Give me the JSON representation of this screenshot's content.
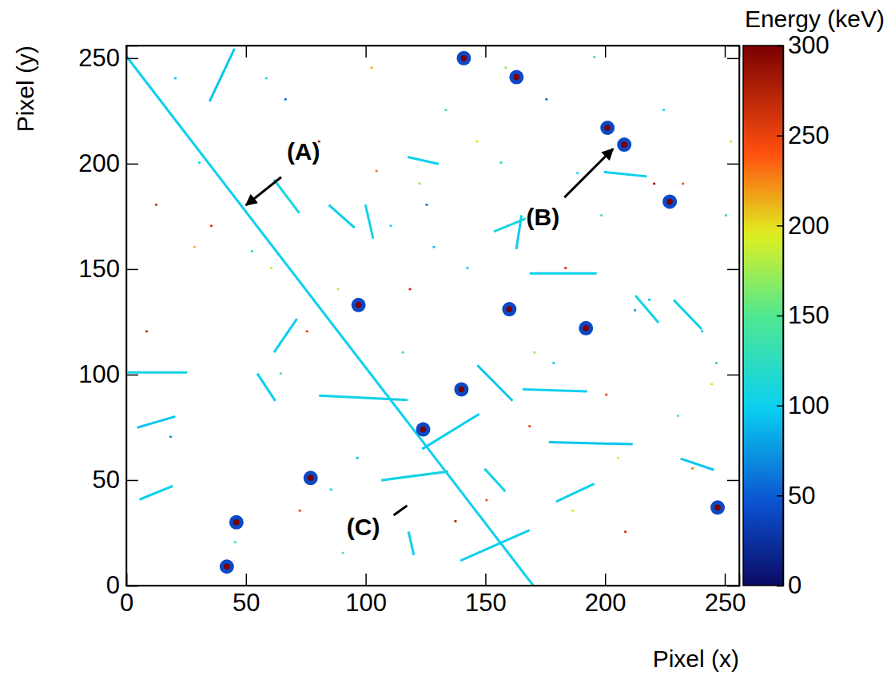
{
  "chart_data": {
    "type": "heatmap",
    "xlabel": "Pixel (x)",
    "ylabel": "Pixel (y)",
    "xlim": [
      0,
      256
    ],
    "ylim": [
      0,
      256
    ],
    "xticks": [
      0,
      50,
      100,
      150,
      200,
      250
    ],
    "yticks": [
      0,
      50,
      100,
      150,
      200,
      250
    ],
    "colorbar": {
      "label": "Energy (keV)",
      "range": [
        0,
        300
      ],
      "ticks": [
        0,
        50,
        100,
        150,
        200,
        250,
        300
      ]
    },
    "tracks": {
      "x1": [
        0,
        1,
        169,
        177,
        166,
        140,
        81,
        62,
        62,
        147,
        124,
        107,
        6,
        154,
        163,
        100,
        35,
        180,
        213,
        229,
        5,
        85,
        150,
        200,
        118,
        232,
        118,
        55
      ],
      "y1": [
        251,
        101,
        148,
        68,
        93,
        12,
        90,
        111,
        192,
        104,
        65,
        50,
        41,
        168,
        160,
        180,
        230,
        40,
        137,
        135,
        75,
        180,
        55,
        196,
        203,
        60,
        25,
        100
      ],
      "x2": [
        170,
        25,
        196,
        211,
        192,
        168,
        117,
        71,
        72,
        161,
        147,
        134,
        19,
        167,
        165,
        103,
        45,
        195,
        222,
        240,
        20,
        95,
        158,
        217,
        130,
        245,
        120,
        62
      ],
      "y2": [
        0,
        101,
        148,
        67,
        92,
        26,
        88,
        126,
        177,
        88,
        81,
        54,
        47,
        174,
        175,
        165,
        254,
        48,
        125,
        122,
        80,
        170,
        45,
        194,
        200,
        55,
        15,
        88
      ],
      "energy": [
        100,
        105,
        100,
        95,
        100,
        100,
        105,
        100,
        110,
        95,
        100,
        105,
        100,
        110,
        100,
        105,
        95,
        100,
        105,
        100,
        95,
        100,
        105,
        100,
        100,
        95,
        100,
        100
      ]
    },
    "clusters": {
      "x": [
        141,
        163,
        201,
        208,
        227,
        97,
        160,
        192,
        140,
        124,
        77,
        46,
        42,
        247
      ],
      "y": [
        250,
        241,
        217,
        209,
        182,
        133,
        131,
        122,
        93,
        74,
        51,
        30,
        9,
        37
      ],
      "energy": [
        300,
        300,
        300,
        300,
        300,
        300,
        300,
        300,
        300,
        300,
        300,
        300,
        300,
        300
      ],
      "edge_energy": [
        40,
        40,
        40,
        40,
        40,
        40,
        40,
        40,
        40,
        40,
        40,
        40,
        40,
        40
      ]
    },
    "hits": {
      "x": [
        20,
        28,
        35,
        52,
        60,
        66,
        75,
        85,
        90,
        104,
        110,
        118,
        128,
        133,
        146,
        150,
        156,
        170,
        175,
        183,
        188,
        195,
        200,
        205,
        212,
        220,
        224,
        230,
        236,
        240,
        244,
        250,
        12,
        18,
        45,
        58,
        72,
        88,
        96,
        102,
        115,
        125,
        137,
        142,
        158,
        168,
        178,
        186,
        198,
        208,
        218,
        232,
        246,
        252,
        8,
        30,
        64,
        80,
        100,
        122
      ],
      "y": [
        240,
        160,
        170,
        158,
        150,
        230,
        120,
        45,
        15,
        196,
        170,
        140,
        160,
        225,
        210,
        40,
        200,
        110,
        230,
        150,
        195,
        250,
        90,
        60,
        130,
        190,
        225,
        80,
        55,
        120,
        95,
        175,
        180,
        70,
        20,
        240,
        35,
        140,
        60,
        245,
        110,
        180,
        30,
        150,
        245,
        75,
        105,
        35,
        175,
        25,
        135,
        190,
        105,
        210,
        120,
        200,
        100,
        210,
        30,
        190
      ],
      "energy": [
        95,
        210,
        260,
        120,
        180,
        60,
        250,
        100,
        150,
        230,
        110,
        270,
        90,
        130,
        200,
        240,
        120,
        170,
        60,
        260,
        100,
        140,
        250,
        190,
        80,
        280,
        110,
        150,
        230,
        95,
        200,
        120,
        260,
        70,
        140,
        110,
        250,
        180,
        90,
        210,
        130,
        60,
        280,
        110,
        170,
        250,
        100,
        200,
        140,
        260,
        90,
        240,
        120,
        190,
        260,
        110,
        150,
        280,
        100,
        170
      ]
    },
    "annotations": [
      {
        "text": "(A)",
        "x": 74,
        "y": 205.7,
        "line": [
          64.7,
          193.6,
          50,
          180.3
        ],
        "line_style": "arrow"
      },
      {
        "text": "(B)",
        "x": 174,
        "y": 174.6,
        "line": [
          183,
          184,
          203.3,
          207
        ],
        "line_style": "arrow"
      },
      {
        "text": "(C)",
        "x": 99,
        "y": 27.7,
        "line": [
          111.7,
          33.3,
          117.3,
          37.9
        ],
        "line_style": "solid"
      }
    ]
  }
}
